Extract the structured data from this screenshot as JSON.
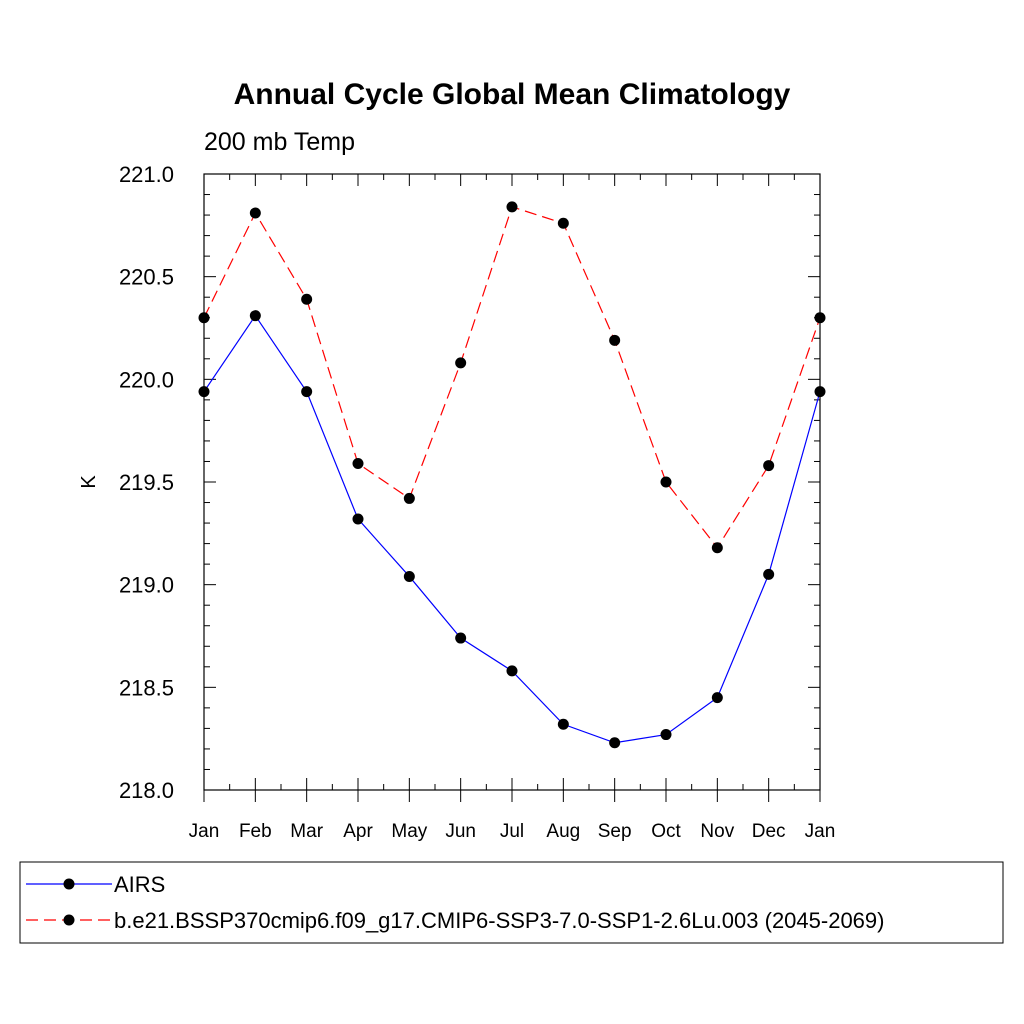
{
  "chart_data": {
    "type": "line",
    "title": "Annual Cycle Global Mean Climatology",
    "subtitle": "200 mb Temp",
    "ylabel": "K",
    "xlabel": "",
    "categories": [
      "Jan",
      "Feb",
      "Mar",
      "Apr",
      "May",
      "Jun",
      "Jul",
      "Aug",
      "Sep",
      "Oct",
      "Nov",
      "Dec",
      "Jan"
    ],
    "ylim": [
      218.0,
      221.0
    ],
    "yticks": [
      "218.0",
      "218.5",
      "219.0",
      "219.5",
      "220.0",
      "220.5",
      "221.0"
    ],
    "grid": false,
    "legend_position": "bottom",
    "series": [
      {
        "name": "AIRS",
        "color": "#0000ff",
        "line_style": "solid",
        "marker": "filled-circle",
        "values": [
          219.94,
          220.31,
          219.94,
          219.32,
          219.04,
          218.74,
          218.58,
          218.32,
          218.23,
          218.27,
          218.45,
          219.05,
          219.94
        ]
      },
      {
        "name": "b.e21.BSSP370cmip6.f09_g17.CMIP6-SSP3-7.0-SSP1-2.6Lu.003 (2045-2069)",
        "color": "#ff0000",
        "line_style": "dashed",
        "marker": "filled-circle",
        "values": [
          220.3,
          220.81,
          220.39,
          219.59,
          219.42,
          220.08,
          220.84,
          220.76,
          220.19,
          219.5,
          219.18,
          219.58,
          220.3
        ]
      }
    ]
  }
}
